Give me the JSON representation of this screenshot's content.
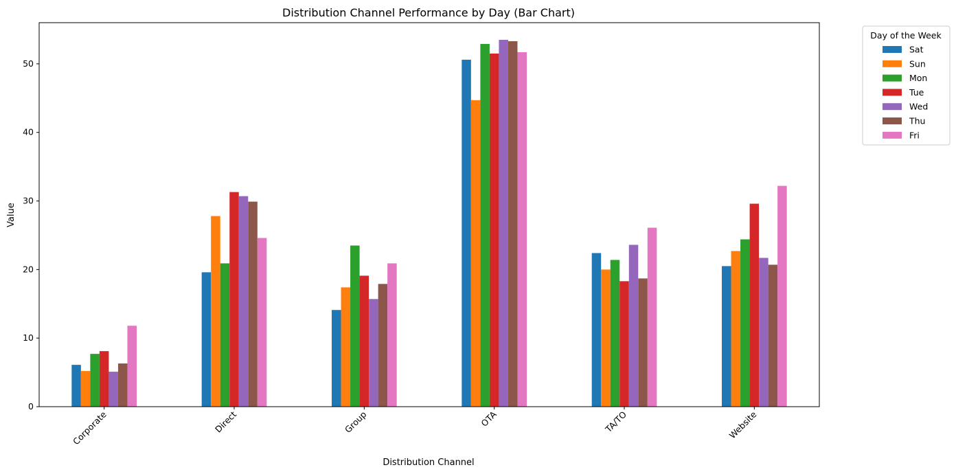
{
  "chart_data": {
    "type": "bar",
    "title": "Distribution Channel Performance by Day (Bar Chart)",
    "xlabel": "Distribution Channel",
    "ylabel": "Value",
    "ylim": [
      0,
      56
    ],
    "yticks": [
      0,
      10,
      20,
      30,
      40,
      50
    ],
    "categories": [
      "Corporate",
      "Direct",
      "Group",
      "OTA",
      "TA/TO",
      "Website"
    ],
    "grid": false,
    "legend": {
      "title": "Day of the Week",
      "placement": "outside-top-right"
    },
    "series": [
      {
        "name": "Sat",
        "color": "#1f77b4",
        "values": [
          6.1,
          19.6,
          14.1,
          50.6,
          22.4,
          20.5
        ]
      },
      {
        "name": "Sun",
        "color": "#ff7f0e",
        "values": [
          5.2,
          27.8,
          17.4,
          44.7,
          20.0,
          22.7
        ]
      },
      {
        "name": "Mon",
        "color": "#2ca02c",
        "values": [
          7.7,
          20.9,
          23.5,
          52.9,
          21.4,
          24.4
        ]
      },
      {
        "name": "Tue",
        "color": "#d62728",
        "values": [
          8.1,
          31.3,
          19.1,
          51.5,
          18.3,
          29.6
        ]
      },
      {
        "name": "Wed",
        "color": "#9467bd",
        "values": [
          5.1,
          30.7,
          15.7,
          53.5,
          23.6,
          21.7
        ]
      },
      {
        "name": "Thu",
        "color": "#8c564b",
        "values": [
          6.3,
          29.9,
          17.9,
          53.3,
          18.7,
          20.7
        ]
      },
      {
        "name": "Fri",
        "color": "#e377c2",
        "values": [
          11.8,
          24.6,
          20.9,
          51.7,
          26.1,
          32.2
        ]
      }
    ]
  }
}
